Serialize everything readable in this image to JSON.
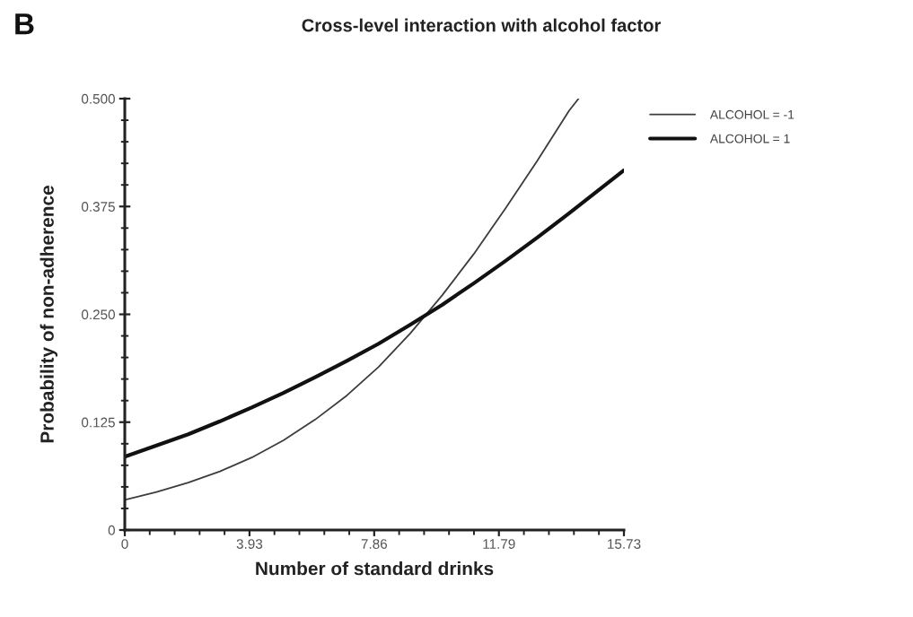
{
  "chart_data": {
    "type": "line",
    "title": "Cross-level interaction with alcohol factor",
    "xlabel": "Number of standard drinks",
    "ylabel": "Probability of non-adherence",
    "annotations": [
      "B"
    ],
    "series": [
      {
        "name": "ALCOHOL = -1",
        "color": "#3c3c3c",
        "x": [
          0,
          1,
          2,
          3,
          4,
          5,
          6,
          7,
          8,
          9,
          10,
          11,
          12,
          13,
          14,
          14.3
        ],
        "values": [
          0.035,
          0.044,
          0.055,
          0.068,
          0.084,
          0.104,
          0.128,
          0.156,
          0.189,
          0.228,
          0.272,
          0.32,
          0.373,
          0.428,
          0.486,
          0.5
        ]
      },
      {
        "name": "ALCOHOL = 1",
        "color": "#111111",
        "x": [
          0,
          1,
          2,
          3,
          4,
          5,
          6,
          7,
          8,
          9,
          10,
          11,
          12,
          13,
          14,
          15,
          15.73
        ],
        "values": [
          0.085,
          0.098,
          0.111,
          0.126,
          0.142,
          0.159,
          0.177,
          0.196,
          0.216,
          0.238,
          0.261,
          0.286,
          0.312,
          0.339,
          0.367,
          0.396,
          0.417
        ]
      }
    ],
    "xlim": [
      0,
      15.73
    ],
    "ylim": [
      0,
      0.5
    ],
    "xticks": [
      0,
      {
        "value": 0.786,
        "label": null
      },
      {
        "value": 1.572,
        "label": null
      },
      {
        "value": 2.358,
        "label": null
      },
      {
        "value": 3.144,
        "label": null
      },
      3.93,
      {
        "value": 4.716,
        "label": null
      },
      {
        "value": 5.502,
        "label": null
      },
      {
        "value": 6.288,
        "label": null
      },
      {
        "value": 7.074,
        "label": null
      },
      7.86,
      {
        "value": 8.646,
        "label": null
      },
      {
        "value": 9.432,
        "label": null
      },
      {
        "value": 10.218,
        "label": null
      },
      {
        "value": 11.004,
        "label": null
      },
      11.79,
      {
        "value": 12.578,
        "label": null
      },
      {
        "value": 13.366,
        "label": null
      },
      {
        "value": 14.154,
        "label": null
      },
      {
        "value": 14.942,
        "label": null
      },
      15.73
    ],
    "yticks": [
      0,
      {
        "value": 0.025,
        "label": null
      },
      {
        "value": 0.05,
        "label": null
      },
      {
        "value": 0.075,
        "label": null
      },
      {
        "value": 0.1,
        "label": null
      },
      0.125,
      {
        "value": 0.15,
        "label": null
      },
      {
        "value": 0.175,
        "label": null
      },
      {
        "value": 0.2,
        "label": null
      },
      {
        "value": 0.225,
        "label": null
      },
      {
        "value": 0.25,
        "label": "0.250"
      },
      {
        "value": 0.275,
        "label": null
      },
      {
        "value": 0.3,
        "label": null
      },
      {
        "value": 0.325,
        "label": null
      },
      {
        "value": 0.35,
        "label": null
      },
      0.375,
      {
        "value": 0.4,
        "label": null
      },
      {
        "value": 0.425,
        "label": null
      },
      {
        "value": 0.45,
        "label": null
      },
      {
        "value": 0.475,
        "label": null
      },
      {
        "value": 0.5,
        "label": "0.500"
      }
    ],
    "legend": "top right",
    "line_style": "solid"
  }
}
